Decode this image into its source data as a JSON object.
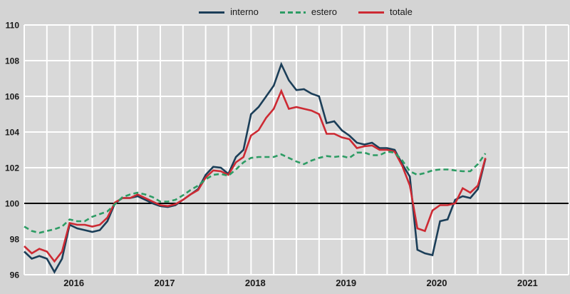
{
  "legend": {
    "items": [
      {
        "label": "interno",
        "style": "solid",
        "color": "#1b3e58"
      },
      {
        "label": "estero",
        "style": "dashed",
        "color": "#2d9c64"
      },
      {
        "label": "totale",
        "style": "solid",
        "color": "#cd2a33"
      }
    ]
  },
  "colors": {
    "background": "#d4d4d4",
    "plot_background": "#d9d9d9",
    "gridline": "#ffffff",
    "baseline": "#000000",
    "axis_text": "#1a1a1a"
  },
  "chart_data": {
    "type": "line",
    "title": "",
    "x_unit": "month",
    "x_start": "2016-01",
    "x_end": "2021-02",
    "x_axis_span_months": 72,
    "year_labels": [
      "2016",
      "2017",
      "2018",
      "2019",
      "2020",
      "2021"
    ],
    "ylim": [
      96,
      110
    ],
    "yticks": [
      96,
      98,
      100,
      102,
      104,
      106,
      108,
      110
    ],
    "baseline_value": 100,
    "grid": {
      "vertical_every_months": 3,
      "horizontal_every_units": 2,
      "color": "#ffffff"
    },
    "legend_position": "top-center",
    "series": [
      {
        "name": "interno",
        "color": "#1b3e58",
        "dash": null,
        "draw_order": 1,
        "values": [
          97.3,
          96.9,
          97.05,
          96.9,
          96.15,
          96.9,
          98.8,
          98.6,
          98.5,
          98.4,
          98.5,
          99.0,
          100.0,
          100.3,
          100.3,
          100.4,
          100.2,
          100.0,
          99.85,
          99.8,
          99.9,
          100.2,
          100.5,
          100.8,
          101.6,
          102.05,
          102.0,
          101.65,
          102.6,
          103.0,
          105.0,
          105.4,
          106.0,
          106.6,
          107.8,
          106.9,
          106.35,
          106.4,
          106.15,
          106.0,
          104.5,
          104.6,
          104.1,
          103.8,
          103.4,
          103.3,
          103.4,
          103.1,
          103.1,
          103.0,
          102.2,
          101.5,
          97.4,
          97.2,
          97.1,
          99.0,
          99.1,
          100.2,
          100.4,
          100.3,
          100.8,
          102.5
        ]
      },
      {
        "name": "estero",
        "color": "#2d9c64",
        "dash": [
          7,
          4.5
        ],
        "draw_order": 3,
        "values": [
          98.7,
          98.45,
          98.35,
          98.45,
          98.55,
          98.7,
          99.1,
          99.0,
          99.0,
          99.25,
          99.4,
          99.55,
          99.95,
          100.35,
          100.5,
          100.6,
          100.5,
          100.35,
          100.1,
          100.1,
          100.2,
          100.45,
          100.75,
          101.0,
          101.35,
          101.6,
          101.65,
          101.55,
          101.9,
          102.3,
          102.55,
          102.6,
          102.6,
          102.6,
          102.75,
          102.55,
          102.35,
          102.2,
          102.4,
          102.55,
          102.65,
          102.6,
          102.65,
          102.55,
          102.85,
          102.85,
          102.7,
          102.7,
          102.9,
          102.85,
          102.4,
          101.8,
          101.6,
          101.7,
          101.85,
          101.9,
          101.9,
          101.85,
          101.8,
          101.8,
          102.2,
          102.8
        ]
      },
      {
        "name": "totale",
        "color": "#cd2a33",
        "dash": null,
        "draw_order": 2,
        "values": [
          97.6,
          97.2,
          97.45,
          97.3,
          96.75,
          97.3,
          98.9,
          98.8,
          98.8,
          98.7,
          98.8,
          99.2,
          100.05,
          100.3,
          100.3,
          100.5,
          100.3,
          100.1,
          99.9,
          99.85,
          99.95,
          100.2,
          100.5,
          100.75,
          101.45,
          101.85,
          101.8,
          101.6,
          102.3,
          102.6,
          103.8,
          104.1,
          104.8,
          105.3,
          106.3,
          105.3,
          105.4,
          105.3,
          105.2,
          105.0,
          103.9,
          103.9,
          103.7,
          103.6,
          103.1,
          103.2,
          103.25,
          103.0,
          103.0,
          102.9,
          102.1,
          101.0,
          98.6,
          98.45,
          99.6,
          99.9,
          99.9,
          100.0,
          100.85,
          100.6,
          101.0,
          102.55
        ]
      }
    ]
  }
}
